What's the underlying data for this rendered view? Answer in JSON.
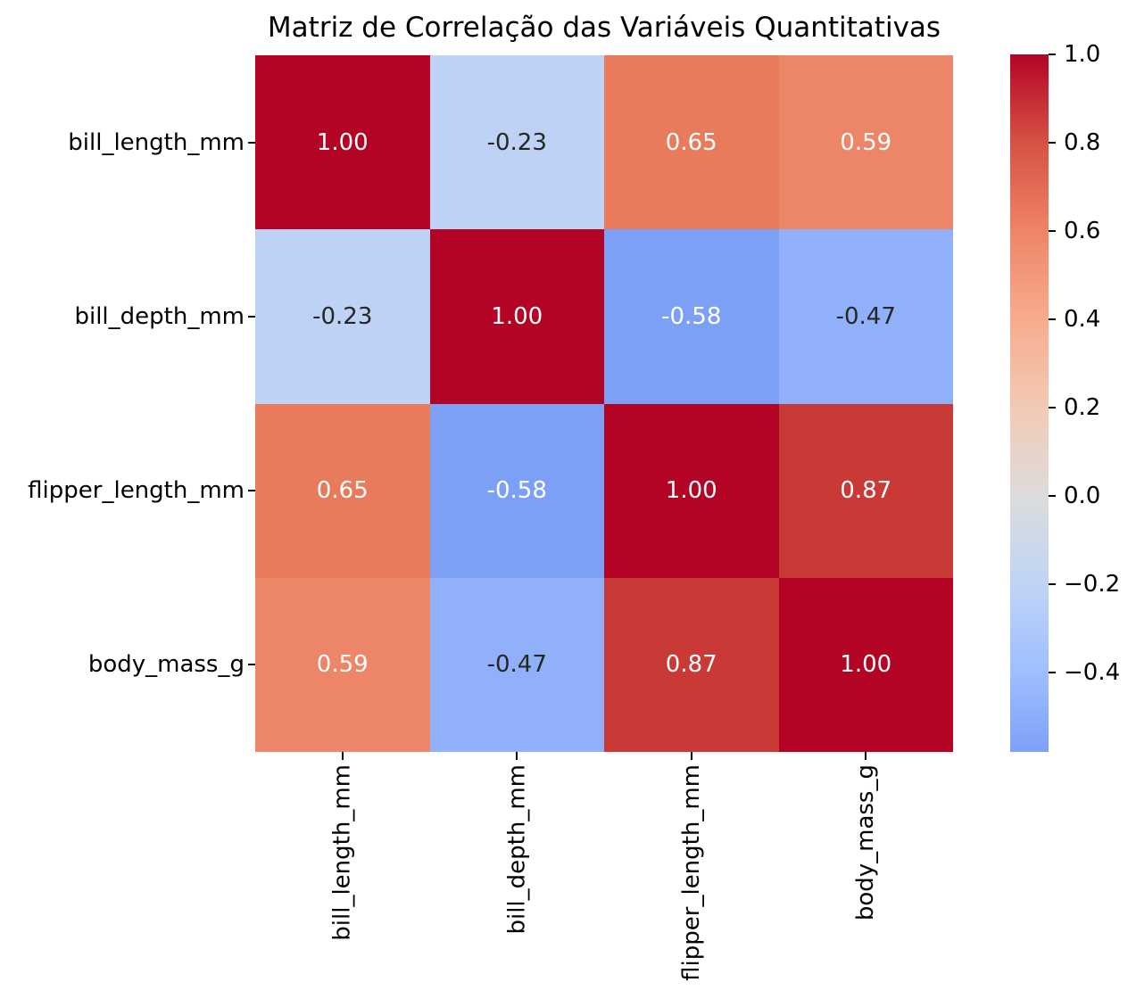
{
  "chart_data": {
    "type": "heatmap",
    "title": "Matriz de Correlação das Variáveis Quantitativas",
    "colormap": "coolwarm",
    "grid": false,
    "variables": [
      "bill_length_mm",
      "bill_depth_mm",
      "flipper_length_mm",
      "body_mass_g"
    ],
    "matrix": [
      [
        1.0,
        -0.23,
        0.65,
        0.59
      ],
      [
        -0.23,
        1.0,
        -0.58,
        -0.47
      ],
      [
        0.65,
        -0.58,
        1.0,
        0.87
      ],
      [
        0.59,
        -0.47,
        0.87,
        1.0
      ]
    ],
    "cells": [
      [
        {
          "label": "1.00",
          "bg": "#b40426",
          "fg": "#ffffff"
        },
        {
          "label": "-0.23",
          "bg": "#bed2f6",
          "fg": "#262626"
        },
        {
          "label": "0.65",
          "bg": "#e87b5c",
          "fg": "#ffffff"
        },
        {
          "label": "0.59",
          "bg": "#ed8568",
          "fg": "#ffffff"
        }
      ],
      [
        {
          "label": "-0.23",
          "bg": "#bed2f6",
          "fg": "#262626"
        },
        {
          "label": "1.00",
          "bg": "#b40426",
          "fg": "#ffffff"
        },
        {
          "label": "-0.58",
          "bg": "#7da0f7",
          "fg": "#ffffff"
        },
        {
          "label": "-0.47",
          "bg": "#90b1f9",
          "fg": "#262626"
        }
      ],
      [
        {
          "label": "0.65",
          "bg": "#e87b5c",
          "fg": "#ffffff"
        },
        {
          "label": "-0.58",
          "bg": "#7da0f7",
          "fg": "#ffffff"
        },
        {
          "label": "1.00",
          "bg": "#b40426",
          "fg": "#ffffff"
        },
        {
          "label": "0.87",
          "bg": "#c93a36",
          "fg": "#ffffff"
        }
      ],
      [
        {
          "label": "0.59",
          "bg": "#ed8568",
          "fg": "#ffffff"
        },
        {
          "label": "-0.47",
          "bg": "#90b1f9",
          "fg": "#262626"
        },
        {
          "label": "0.87",
          "bg": "#c93a36",
          "fg": "#ffffff"
        },
        {
          "label": "1.00",
          "bg": "#b40426",
          "fg": "#ffffff"
        }
      ]
    ],
    "colorbar": {
      "vmin": -0.58,
      "vmax": 1.0,
      "ticks": [
        {
          "label": "1.0",
          "value": 1.0
        },
        {
          "label": "0.8",
          "value": 0.8
        },
        {
          "label": "0.6",
          "value": 0.6
        },
        {
          "label": "0.4",
          "value": 0.4
        },
        {
          "label": "0.2",
          "value": 0.2
        },
        {
          "label": "0.0",
          "value": 0.0
        },
        {
          "label": "−0.2",
          "value": -0.2
        },
        {
          "label": "−0.4",
          "value": -0.4
        }
      ],
      "gradient": [
        {
          "pos": 0.0,
          "color": "#b40426"
        },
        {
          "pos": 12.66,
          "color": "#d65244"
        },
        {
          "pos": 25.32,
          "color": "#ee8468"
        },
        {
          "pos": 37.97,
          "color": "#f7ac8e"
        },
        {
          "pos": 50.63,
          "color": "#f2cab5"
        },
        {
          "pos": 63.29,
          "color": "#dddcdc"
        },
        {
          "pos": 75.95,
          "color": "#c0d4f5"
        },
        {
          "pos": 88.61,
          "color": "#9ebeff"
        },
        {
          "pos": 100.0,
          "color": "#7ea1f9"
        }
      ]
    }
  }
}
